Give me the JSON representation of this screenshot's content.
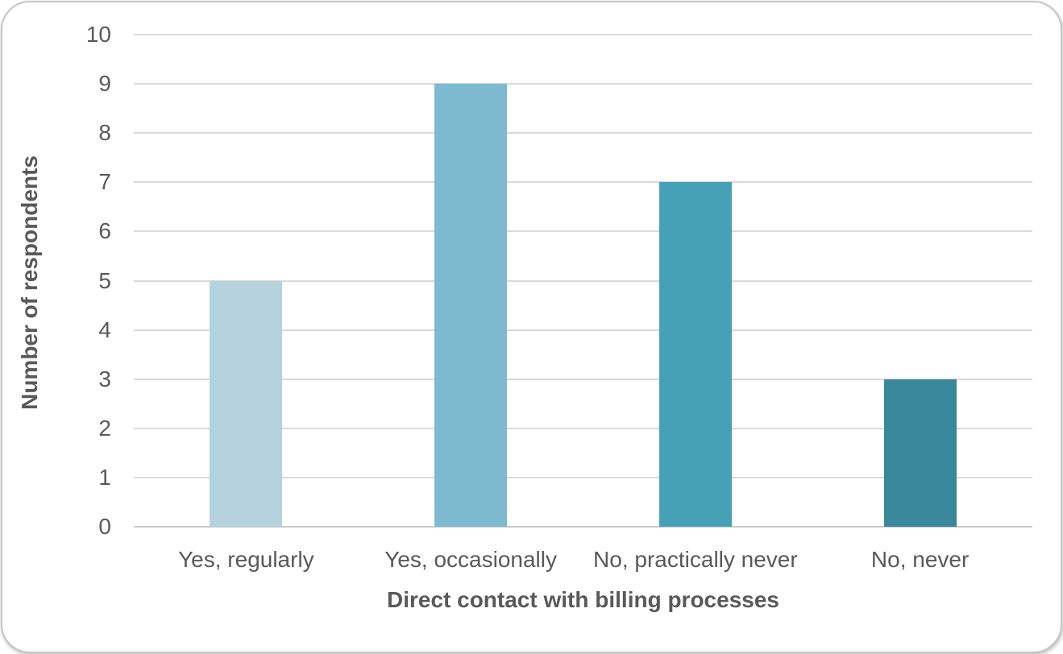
{
  "chart_data": {
    "type": "bar",
    "categories": [
      "Yes, regularly",
      "Yes, occasionally",
      "No, practically never",
      "No, never"
    ],
    "values": [
      5,
      9,
      7,
      3
    ],
    "title": "",
    "xlabel": "Direct contact with billing processes",
    "ylabel": "Number of respondents",
    "ylim": [
      0,
      10
    ],
    "yticks": [
      0,
      1,
      2,
      3,
      4,
      5,
      6,
      7,
      8,
      9,
      10
    ],
    "grid": true,
    "legend": "none",
    "bar_colors": [
      "#b5d2de",
      "#7db9cf",
      "#46a1b6",
      "#38879b"
    ],
    "gridline_color": "#d9d9d9",
    "axis_line_color": "#c9c9c9",
    "text_color": "#595959",
    "card_border_color": "#c6c6c6"
  }
}
